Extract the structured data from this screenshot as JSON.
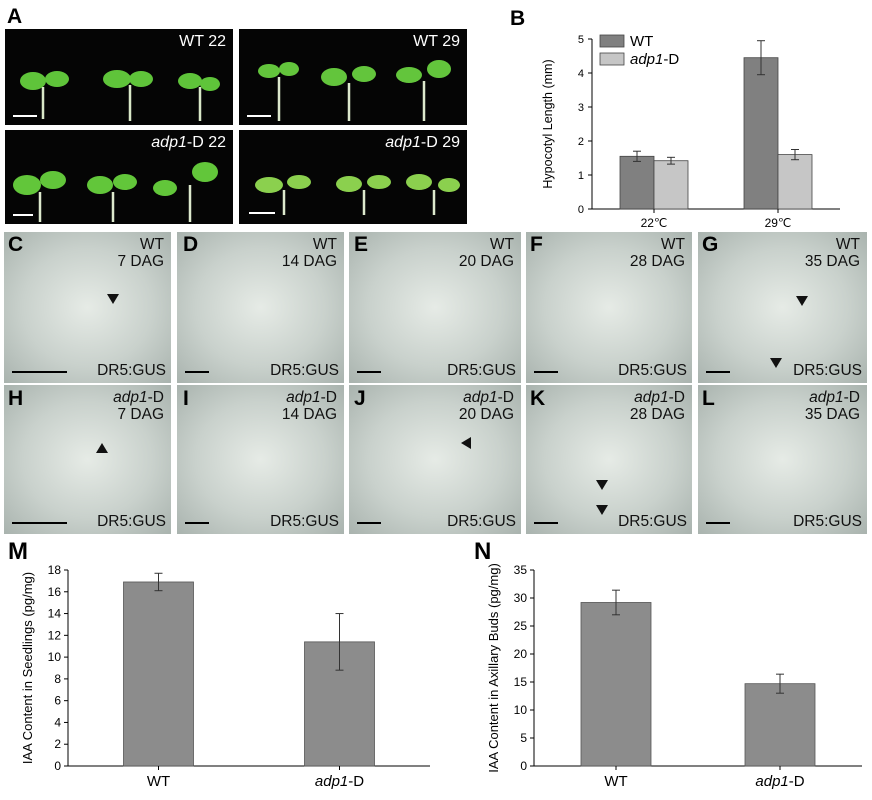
{
  "panel_labels": {
    "A": "A",
    "B": "B",
    "C": "C",
    "D": "D",
    "E": "E",
    "F": "F",
    "G": "G",
    "H": "H",
    "I": "I",
    "J": "J",
    "K": "K",
    "L": "L",
    "M": "M",
    "N": "N"
  },
  "seedlings": {
    "wt22": "WT 22",
    "wt29": "WT 29",
    "adp22_gene": "adp1",
    "adp22_rest": "-D 22",
    "adp29_gene": "adp1",
    "adp29_rest": "-D 29"
  },
  "gus_panels": {
    "C": {
      "title": "WT\n7 DAG",
      "marker": "DR5:GUS"
    },
    "D": {
      "title": "WT\n14 DAG",
      "marker": "DR5:GUS"
    },
    "E": {
      "title": "WT\n20 DAG",
      "marker": "DR5:GUS"
    },
    "F": {
      "title": "WT\n28 DAG",
      "marker": "DR5:GUS"
    },
    "G": {
      "title": "WT\n35 DAG",
      "marker": "DR5:GUS"
    },
    "H": {
      "gene": "adp1",
      "suffix": "-D",
      "dag": "7 DAG",
      "marker": "DR5:GUS"
    },
    "I": {
      "gene": "adp1",
      "suffix": "-D",
      "dag": "14 DAG",
      "marker": "DR5:GUS"
    },
    "J": {
      "gene": "adp1",
      "suffix": "-D",
      "dag": "20 DAG",
      "marker": "DR5:GUS"
    },
    "K": {
      "gene": "adp1",
      "suffix": "-D",
      "dag": "28 DAG",
      "marker": "DR5:GUS"
    },
    "L": {
      "gene": "adp1",
      "suffix": "-D",
      "dag": "35 DAG",
      "marker": "DR5:GUS"
    }
  },
  "colors": {
    "wt": "#808080",
    "adp1d": "#c6c6c6",
    "bar": "#8c8c8c"
  },
  "chart_data": [
    {
      "type": "bar",
      "panel": "B",
      "categories": [
        "22℃",
        "29℃"
      ],
      "series": [
        {
          "name": "WT",
          "values": [
            1.55,
            4.45
          ],
          "errors": [
            0.15,
            0.5
          ]
        },
        {
          "name": "adp1-D",
          "values": [
            1.42,
            1.6
          ],
          "errors": [
            0.1,
            0.15
          ]
        }
      ],
      "legend_gene": "adp1",
      "legend_suffix": "-D",
      "ylabel": "Hypocotyl Length (mm)",
      "ylim": [
        0,
        5
      ],
      "yticks": [
        0,
        1,
        2,
        3,
        4,
        5
      ],
      "legend": "top-left"
    },
    {
      "type": "bar",
      "panel": "M",
      "categories": [
        "WT",
        "adp1-D"
      ],
      "category_gene": "adp1",
      "category_suffix": "-D",
      "values": [
        16.9,
        11.4
      ],
      "errors": [
        0.8,
        2.6
      ],
      "ylabel": "IAA Content in Seedlings (pg/mg)",
      "ylim": [
        0,
        18
      ],
      "yticks": [
        0,
        2,
        4,
        6,
        8,
        10,
        12,
        14,
        16,
        18
      ]
    },
    {
      "type": "bar",
      "panel": "N",
      "categories": [
        "WT",
        "adp1-D"
      ],
      "category_gene": "adp1",
      "category_suffix": "-D",
      "values": [
        29.2,
        14.7
      ],
      "errors": [
        2.2,
        1.7
      ],
      "ylabel": "IAA Content in Axillary Buds (pg/mg)",
      "ylim": [
        0,
        35
      ],
      "yticks": [
        0,
        5,
        10,
        15,
        20,
        25,
        30,
        35
      ]
    }
  ]
}
